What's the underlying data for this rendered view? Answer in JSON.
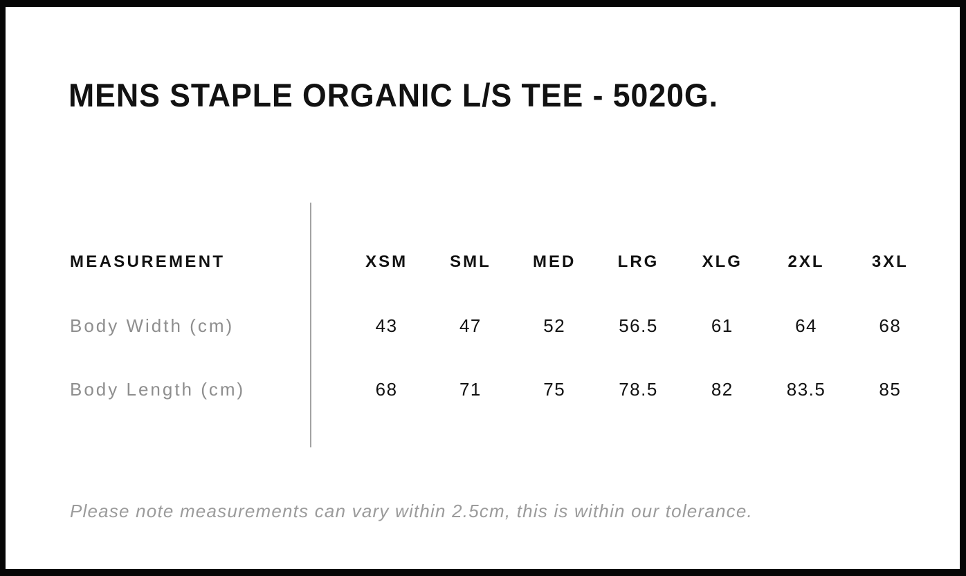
{
  "title": "MENS STAPLE ORGANIC L/S TEE - 5020G.",
  "table": {
    "label_header": "MEASUREMENT",
    "size_headers": [
      "XSM",
      "SML",
      "MED",
      "LRG",
      "XLG",
      "2XL",
      "3XL"
    ],
    "rows": [
      {
        "label": "Body Width (cm)",
        "values": [
          "43",
          "47",
          "52",
          "56.5",
          "61",
          "64",
          "68"
        ]
      },
      {
        "label": "Body Length (cm)",
        "values": [
          "68",
          "71",
          "75",
          "78.5",
          "82",
          "83.5",
          "85"
        ]
      }
    ]
  },
  "footnote": "Please note measurements can vary within 2.5cm, this is within our tolerance.",
  "colors": {
    "frame": "#060606",
    "text": "#121212",
    "muted": "#8e8e8e",
    "footnote": "#9b9b9b",
    "divider": "#a3a3a3",
    "background": "#ffffff"
  },
  "chart_data": {
    "type": "table",
    "title": "MENS STAPLE ORGANIC L/S TEE - 5020G.",
    "columns": [
      "MEASUREMENT",
      "XSM",
      "SML",
      "MED",
      "LRG",
      "XLG",
      "2XL",
      "3XL"
    ],
    "rows": [
      [
        "Body Width (cm)",
        43,
        47,
        52,
        56.5,
        61,
        64,
        68
      ],
      [
        "Body Length (cm)",
        68,
        71,
        75,
        78.5,
        82,
        83.5,
        85
      ]
    ],
    "note": "Please note measurements can vary within 2.5cm, this is within our tolerance."
  }
}
